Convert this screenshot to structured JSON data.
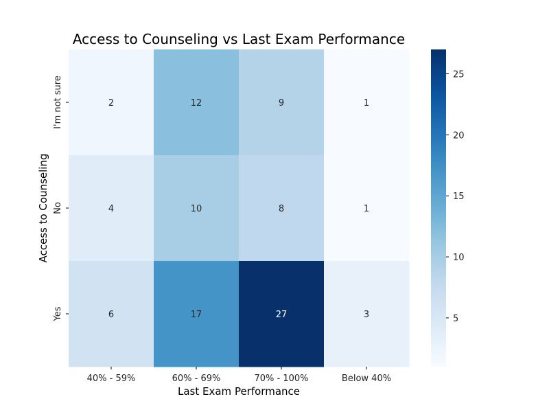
{
  "chart_data": {
    "type": "heatmap",
    "title": "Access to Counseling vs Last Exam Performance",
    "xlabel": "Last Exam Performance",
    "ylabel": "Access to Counseling",
    "x_categories": [
      "40% - 59%",
      "60% - 69%",
      "70% - 100%",
      "Below 40%"
    ],
    "y_categories": [
      "I'm not sure",
      "No",
      "Yes"
    ],
    "values": [
      [
        2,
        12,
        9,
        1
      ],
      [
        4,
        10,
        8,
        1
      ],
      [
        6,
        17,
        27,
        3
      ]
    ],
    "colorbar": {
      "range": [
        1,
        27
      ],
      "ticks": [
        5,
        10,
        15,
        20,
        25
      ]
    },
    "colormap": "Blues",
    "colors": {
      "low": "#f7fbff",
      "high": "#08306b"
    }
  }
}
